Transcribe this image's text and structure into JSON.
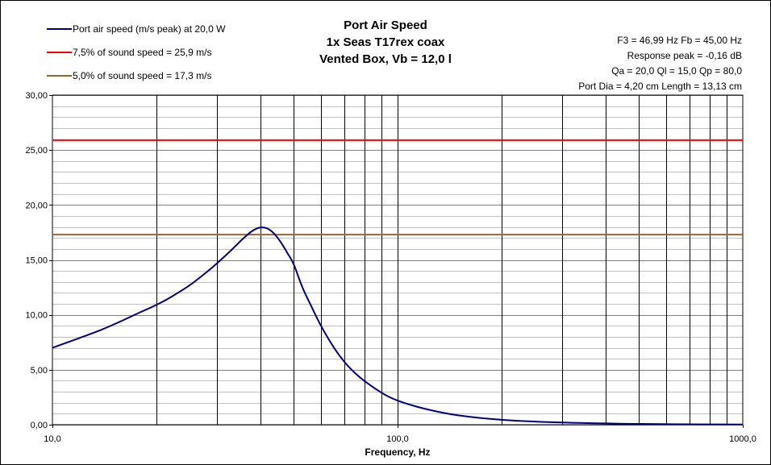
{
  "chart_data": {
    "type": "line",
    "title": [
      "Port Air Speed",
      "1x Seas T17rex coax",
      "Vented Box, Vb = 12,0 l"
    ],
    "xlabel": "Frequency, Hz",
    "ylabel": "",
    "x_scale": "log",
    "xlim": [
      10,
      1000
    ],
    "ylim": [
      0,
      30
    ],
    "x_ticks": [
      {
        "value": 10,
        "label": "10,0"
      },
      {
        "value": 100,
        "label": "100,0"
      },
      {
        "value": 1000,
        "label": "1000,0"
      }
    ],
    "y_ticks": [
      {
        "value": 0,
        "label": "0,00"
      },
      {
        "value": 5,
        "label": "5,00"
      },
      {
        "value": 10,
        "label": "10,00"
      },
      {
        "value": 15,
        "label": "15,00"
      },
      {
        "value": 20,
        "label": "20,00"
      },
      {
        "value": 25,
        "label": "25,00"
      },
      {
        "value": 30,
        "label": "30,00"
      }
    ],
    "grid": {
      "major_x": true,
      "minor_y_step": 1,
      "major_y_step": 5
    },
    "legend_position": "top-left",
    "series": [
      {
        "name": "Port air speed (m/s peak) at 20,0 W",
        "color": "#000080",
        "x": [
          10,
          12,
          14,
          16,
          18,
          20,
          22,
          25,
          28,
          30,
          33,
          36,
          38,
          40,
          42,
          44,
          46,
          48,
          50,
          53,
          56,
          60,
          65,
          70,
          75,
          80,
          90,
          100,
          120,
          150,
          200,
          300,
          500,
          700,
          1000
        ],
        "y": [
          7.0,
          7.9,
          8.7,
          9.5,
          10.25,
          10.9,
          11.6,
          12.7,
          13.9,
          14.7,
          15.9,
          17.05,
          17.65,
          17.95,
          17.85,
          17.35,
          16.55,
          15.6,
          14.6,
          12.5,
          10.9,
          9.0,
          7.15,
          5.75,
          4.75,
          4.0,
          2.9,
          2.2,
          1.45,
          0.85,
          0.45,
          0.2,
          0.07,
          0.04,
          0.02
        ]
      },
      {
        "name": "7,5% of sound speed = 25,9 m/s",
        "color": "#ff0000",
        "x": [
          10,
          1000
        ],
        "y": [
          25.9,
          25.9
        ]
      },
      {
        "name": "5,0% of sound speed = 17,3 m/s",
        "color": "#996633",
        "x": [
          10,
          1000
        ],
        "y": [
          17.3,
          17.3
        ]
      }
    ],
    "info_lines": [
      "F3 = 46,99 Hz  Fb = 45,00 Hz",
      "Response peak = -0,16 dB",
      "Qa = 20,0  Ql = 15,0  Qp = 80,0",
      "Port Dia = 4,20 cm  Length = 13,13 cm"
    ]
  }
}
